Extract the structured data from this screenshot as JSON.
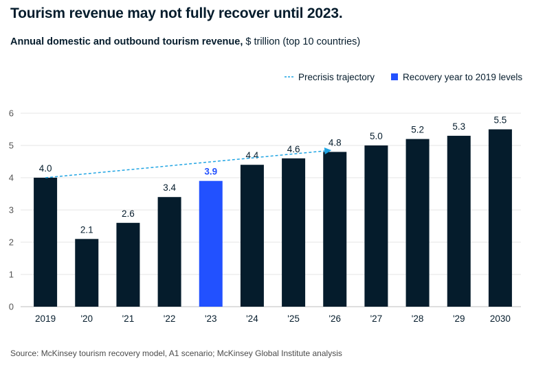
{
  "header": {
    "title": "Tourism revenue may not fully recover until 2023.",
    "subtitle_bold": "Annual domestic and outbound tourism revenue,",
    "subtitle_rest": " $ trillion (top 10 countries)"
  },
  "footer": {
    "source": "Source: McKinsey tourism recovery model, A1 scenario; McKinsey Global Institute analysis"
  },
  "colors": {
    "bar": "#051c2c",
    "highlight": "#2251ff",
    "trajectory": "#1fa4e3",
    "grid": "#e6e6e6"
  },
  "chart_data": {
    "type": "bar",
    "categories": [
      "2019",
      "'20",
      "'21",
      "'22",
      "'23",
      "'24",
      "'25",
      "'26",
      "'27",
      "'28",
      "'29",
      "2030"
    ],
    "values": [
      4.0,
      2.1,
      2.6,
      3.4,
      3.9,
      4.4,
      4.6,
      4.8,
      5.0,
      5.2,
      5.3,
      5.5
    ],
    "value_labels": [
      "4.0",
      "2.1",
      "2.6",
      "3.4",
      "3.9",
      "4.4",
      "4.6",
      "4.8",
      "5.0",
      "5.2",
      "5.3",
      "5.5"
    ],
    "highlight_category": "'23",
    "ylim": [
      0,
      6
    ],
    "yticks": [
      0,
      1,
      2,
      3,
      4,
      5,
      6
    ],
    "grid": true,
    "legend_position": "top-right",
    "legend": [
      {
        "label": "Precrisis trajectory",
        "kind": "dashed-line-arrow"
      },
      {
        "label": "Recovery year to 2019 levels",
        "kind": "square"
      }
    ],
    "trajectory": {
      "from_category": "2019",
      "from_value": 4.0,
      "to_category": "'26",
      "to_value": 4.85
    }
  }
}
